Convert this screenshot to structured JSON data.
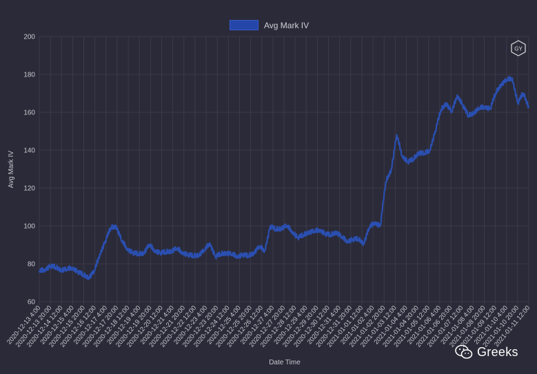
{
  "colors": {
    "background": "#2b2a38",
    "grid": "#3c3b4a",
    "line": "#2a4fb0",
    "text": "#c8c8d0"
  },
  "legend": {
    "label": "Avg Mark IV"
  },
  "logo": {
    "text": "GY"
  },
  "watermark": {
    "text": "Greeks",
    "icon": "wechat-icon"
  },
  "chart_data": {
    "type": "line",
    "title": "",
    "xlabel": "Date Time",
    "ylabel": "Avg Mark IV",
    "ylim": [
      60,
      200
    ],
    "yticks": [
      60,
      80,
      100,
      120,
      140,
      160,
      180,
      200
    ],
    "grid": true,
    "legend_position": "top",
    "x_tick_labels": [
      "2020-12-13 4:00",
      "2020-12-13 20:00",
      "2020-12-14 12:00",
      "2020-12-15 4:00",
      "2020-12-15 20:00",
      "2020-12-16 12:00",
      "2020-12-17 4:00",
      "2020-12-17 20:00",
      "2020-12-18 12:00",
      "2020-12-19 4:00",
      "2020-12-19 20:00",
      "2020-12-20 12:00",
      "2020-12-21 4:00",
      "2020-12-21 20:00",
      "2020-12-22 12:00",
      "2020-12-23 4:00",
      "2020-12-23 20:00",
      "2020-12-24 12:00",
      "2020-12-25 4:00",
      "2020-12-25 20:00",
      "2020-12-26 12:00",
      "2020-12-27 4:00",
      "2020-12-27 20:00",
      "2020-12-28 12:00",
      "2020-12-29 4:00",
      "2020-12-29 20:00",
      "2020-12-30 12:00",
      "2020-12-31 4:00",
      "2020-12-31 20:00",
      "2021-01-01 12:00",
      "2021-01-02 4:00",
      "2021-01-02 20:00",
      "2021-01-03 12:00",
      "2021-01-04 4:00",
      "2021-01-04 20:00",
      "2021-01-05 12:00",
      "2021-01-06 4:00",
      "2021-01-06 20:00",
      "2021-01-07 12:00",
      "2021-01-08 4:00",
      "2021-01-08 20:00",
      "2021-01-09 12:00",
      "2021-01-10 4:00",
      "2021-01-10 20:00",
      "2021-01-11 12:00"
    ],
    "series": [
      {
        "name": "Avg Mark IV",
        "color": "#2a4fb0",
        "x": [
          "2020-12-13 04:00",
          "2020-12-13 12:00",
          "2020-12-13 20:00",
          "2020-12-14 04:00",
          "2020-12-14 12:00",
          "2020-12-14 20:00",
          "2020-12-15 04:00",
          "2020-12-15 12:00",
          "2020-12-15 20:00",
          "2020-12-16 04:00",
          "2020-12-16 12:00",
          "2020-12-16 20:00",
          "2020-12-17 04:00",
          "2020-12-17 12:00",
          "2020-12-17 20:00",
          "2020-12-18 04:00",
          "2020-12-18 12:00",
          "2020-12-18 20:00",
          "2020-12-19 04:00",
          "2020-12-19 12:00",
          "2020-12-19 20:00",
          "2020-12-20 04:00",
          "2020-12-20 12:00",
          "2020-12-20 20:00",
          "2020-12-21 04:00",
          "2020-12-21 12:00",
          "2020-12-21 20:00",
          "2020-12-22 04:00",
          "2020-12-22 12:00",
          "2020-12-22 20:00",
          "2020-12-23 04:00",
          "2020-12-23 12:00",
          "2020-12-23 20:00",
          "2020-12-24 04:00",
          "2020-12-24 12:00",
          "2020-12-24 20:00",
          "2020-12-25 04:00",
          "2020-12-25 12:00",
          "2020-12-25 20:00",
          "2020-12-26 04:00",
          "2020-12-26 12:00",
          "2020-12-26 20:00",
          "2020-12-27 04:00",
          "2020-12-27 12:00",
          "2020-12-27 20:00",
          "2020-12-28 04:00",
          "2020-12-28 12:00",
          "2020-12-28 20:00",
          "2020-12-29 04:00",
          "2020-12-29 12:00",
          "2020-12-29 20:00",
          "2020-12-30 04:00",
          "2020-12-30 12:00",
          "2020-12-30 20:00",
          "2020-12-31 04:00",
          "2020-12-31 12:00",
          "2020-12-31 20:00",
          "2021-01-01 04:00",
          "2021-01-01 12:00",
          "2021-01-01 20:00",
          "2021-01-02 04:00",
          "2021-01-02 12:00",
          "2021-01-02 20:00",
          "2021-01-03 04:00",
          "2021-01-03 12:00",
          "2021-01-03 20:00",
          "2021-01-04 04:00",
          "2021-01-04 12:00",
          "2021-01-04 20:00",
          "2021-01-05 04:00",
          "2021-01-05 12:00",
          "2021-01-05 20:00",
          "2021-01-06 04:00",
          "2021-01-06 12:00",
          "2021-01-06 20:00",
          "2021-01-07 04:00",
          "2021-01-07 12:00",
          "2021-01-07 20:00",
          "2021-01-08 04:00",
          "2021-01-08 12:00",
          "2021-01-08 20:00",
          "2021-01-09 04:00",
          "2021-01-09 12:00",
          "2021-01-09 20:00",
          "2021-01-10 04:00",
          "2021-01-10 12:00",
          "2021-01-10 20:00",
          "2021-01-11 04:00",
          "2021-01-11 12:00",
          "2021-01-11 20:00"
        ],
        "values": [
          76,
          77,
          79,
          78,
          77,
          77,
          78,
          76,
          74,
          73,
          76,
          85,
          92,
          99,
          100,
          92,
          88,
          86,
          85,
          86,
          90,
          87,
          86,
          86,
          87,
          88,
          86,
          85,
          84,
          85,
          87,
          91,
          84,
          85,
          86,
          85,
          84,
          85,
          84,
          86,
          89,
          87,
          100,
          98,
          99,
          100,
          97,
          94,
          95,
          97,
          97,
          98,
          96,
          95,
          97,
          94,
          92,
          93,
          93,
          91,
          99,
          102,
          100,
          123,
          130,
          148,
          137,
          134,
          135,
          139,
          138,
          140,
          150,
          161,
          165,
          160,
          169,
          164,
          158,
          160,
          162,
          163,
          162,
          170,
          175,
          177,
          178,
          165,
          170,
          163
        ]
      }
    ]
  }
}
